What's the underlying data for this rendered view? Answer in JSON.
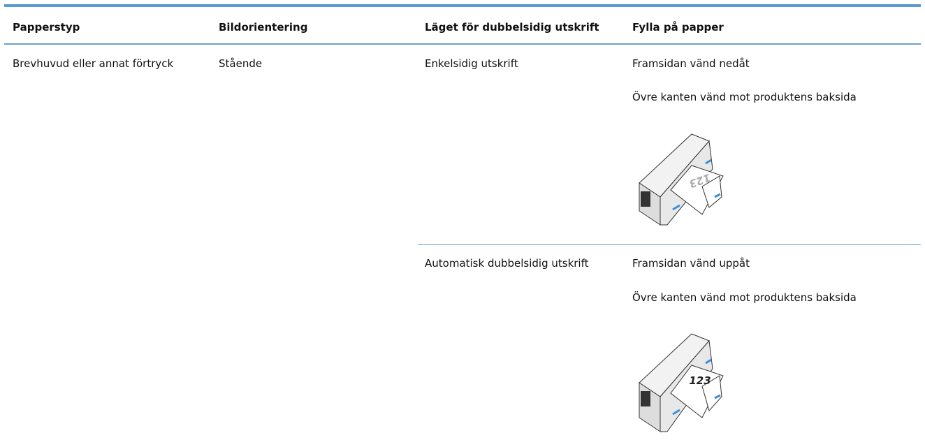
{
  "table": {
    "headers": [
      "Papperstyp",
      "Bildorientering",
      "Läget för dubbelsidig utskrift",
      "Fylla på papper"
    ],
    "rows": [
      {
        "paper_type": "Brevhuvud eller annat förtryck",
        "orientation": "Stående",
        "modes": [
          {
            "mode": "Enkelsidig utskrift",
            "steps": [
              "Framsidan vänd nedåt",
              "Övre kanten vänd mot produktens baksida"
            ],
            "figure_label": "123"
          },
          {
            "mode": "Automatisk dubbelsidig utskrift",
            "steps": [
              "Framsidan vänd uppåt",
              "Övre kanten vänd mot produktens baksida"
            ],
            "figure_label": "123"
          }
        ]
      }
    ]
  }
}
